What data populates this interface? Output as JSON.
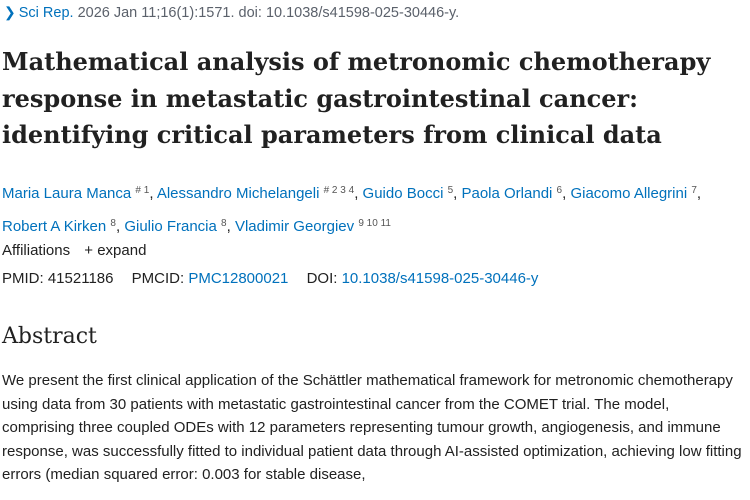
{
  "citation": {
    "journal": "Sci Rep.",
    "details": "2026 Jan 11;16(1):1571. doi: 10.1038/s41598-025-30446-y."
  },
  "title": "Mathematical analysis of metronomic chemotherapy response in metastatic gastrointestinal cancer: identifying critical parameters from clinical data",
  "authors": [
    {
      "name": "Maria Laura Manca",
      "sup": "# 1"
    },
    {
      "name": "Alessandro Michelangeli",
      "sup": "# 2 3 4"
    },
    {
      "name": "Guido Bocci",
      "sup": "5"
    },
    {
      "name": "Paola Orlandi",
      "sup": "6"
    },
    {
      "name": "Giacomo Allegrini",
      "sup": "7"
    },
    {
      "name": "Robert A Kirken",
      "sup": "8"
    },
    {
      "name": "Giulio Francia",
      "sup": "8"
    },
    {
      "name": "Vladimir Georgiev",
      "sup": "9 10 11"
    }
  ],
  "affiliations": {
    "label": "Affiliations",
    "expand_label": "expand"
  },
  "ids": {
    "pmid_label": "PMID:",
    "pmid": "41521186",
    "pmcid_label": "PMCID:",
    "pmcid": "PMC12800021",
    "doi_label": "DOI:",
    "doi": "10.1038/s41598-025-30446-y"
  },
  "abstract": {
    "heading": "Abstract",
    "text": "We present the first clinical application of the Schättler mathematical framework for metronomic chemotherapy using data from 30 patients with metastatic gastrointestinal cancer from the COMET trial. The model, comprising three coupled ODEs with 12 parameters representing tumour growth, angiogenesis, and immune response, was successfully fitted to individual patient data through AI-assisted optimization, achieving low fitting errors (median squared error: 0.003 for stable disease,"
  }
}
